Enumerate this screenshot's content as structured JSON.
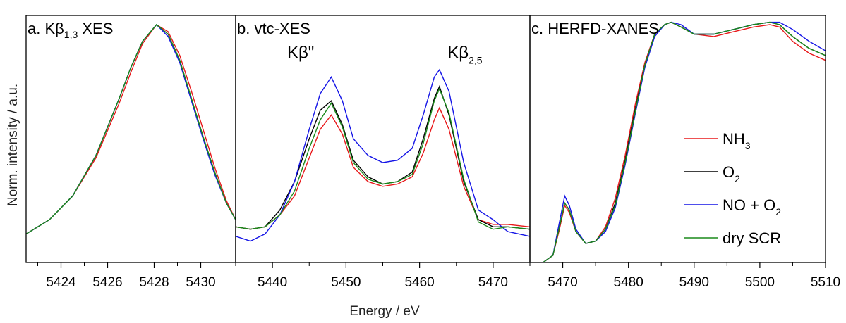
{
  "figure": {
    "ylabel": "Norm. intensity / a.u.",
    "xlabel": "Energy / eV"
  },
  "legend": [
    {
      "label_main": "NH",
      "label_sub": "3",
      "label_tail": "",
      "color": "#e8191b"
    },
    {
      "label_main": "O",
      "label_sub": "2",
      "label_tail": "",
      "color": "#000000"
    },
    {
      "label_main": "NO + O",
      "label_sub": "2",
      "label_tail": "",
      "color": "#1414e6"
    },
    {
      "label_main": "dry SCR",
      "label_sub": "",
      "label_tail": "",
      "color": "#1a8a1a"
    }
  ],
  "chart_data": [
    {
      "type": "line",
      "title_main": "a. Kβ",
      "title_sub": "1,3",
      "title_tail": " XES",
      "xlim": [
        5422.5,
        5431.5
      ],
      "xticks": [
        5424,
        5426,
        5428,
        5430
      ],
      "ylim": [
        0,
        1.1
      ],
      "series": [
        {
          "color": "#e8191b",
          "x": [
            5422.5,
            5423.5,
            5424.5,
            5425.5,
            5426.5,
            5427.0,
            5427.5,
            5428.1,
            5428.6,
            5429.1,
            5429.6,
            5430.1,
            5430.6,
            5431.1,
            5431.5
          ],
          "y": [
            0.12,
            0.18,
            0.28,
            0.44,
            0.67,
            0.8,
            0.92,
            1.0,
            0.97,
            0.87,
            0.72,
            0.56,
            0.4,
            0.26,
            0.18
          ]
        },
        {
          "color": "#000000",
          "x": [
            5422.5,
            5423.5,
            5424.5,
            5425.5,
            5426.5,
            5427.0,
            5427.5,
            5428.1,
            5428.6,
            5429.1,
            5429.6,
            5430.1,
            5430.6,
            5431.1,
            5431.5
          ],
          "y": [
            0.12,
            0.18,
            0.28,
            0.45,
            0.69,
            0.82,
            0.93,
            1.0,
            0.96,
            0.85,
            0.69,
            0.53,
            0.38,
            0.25,
            0.18
          ]
        },
        {
          "color": "#1414e6",
          "x": [
            5422.5,
            5423.5,
            5424.5,
            5425.5,
            5426.5,
            5427.0,
            5427.5,
            5428.1,
            5428.6,
            5429.1,
            5429.6,
            5430.1,
            5430.6,
            5431.1,
            5431.5
          ],
          "y": [
            0.12,
            0.18,
            0.28,
            0.45,
            0.69,
            0.82,
            0.93,
            1.0,
            0.95,
            0.84,
            0.68,
            0.52,
            0.37,
            0.25,
            0.18
          ]
        },
        {
          "color": "#1a8a1a",
          "x": [
            5422.5,
            5423.5,
            5424.5,
            5425.5,
            5426.5,
            5427.0,
            5427.5,
            5428.1,
            5428.6,
            5429.1,
            5429.6,
            5430.1,
            5430.6,
            5431.1,
            5431.5
          ],
          "y": [
            0.12,
            0.18,
            0.28,
            0.45,
            0.69,
            0.82,
            0.93,
            1.0,
            0.96,
            0.85,
            0.69,
            0.53,
            0.38,
            0.25,
            0.18
          ]
        }
      ]
    },
    {
      "type": "line",
      "title_main": "b. vtc-XES",
      "title_sub": "",
      "title_tail": "",
      "xlim": [
        5435,
        5475
      ],
      "xticks": [
        5440,
        5450,
        5460,
        5470
      ],
      "ylim": [
        0,
        1.1
      ],
      "annotations": [
        {
          "main": "Kβ\"",
          "sub": "",
          "x": 5442.0,
          "y": 0.86
        },
        {
          "main": "Kβ",
          "sub": "2,5",
          "x": 5463.8,
          "y": 0.86
        }
      ],
      "series": [
        {
          "color": "#e8191b",
          "x": [
            5435,
            5437,
            5439,
            5441,
            5443,
            5445,
            5446.5,
            5448,
            5449.5,
            5451,
            5453,
            5455,
            5457,
            5459,
            5460.5,
            5462,
            5462.7,
            5464,
            5466,
            5468,
            5470,
            5472,
            5475
          ],
          "y": [
            0.15,
            0.14,
            0.15,
            0.2,
            0.28,
            0.44,
            0.56,
            0.62,
            0.54,
            0.4,
            0.34,
            0.32,
            0.33,
            0.36,
            0.46,
            0.6,
            0.65,
            0.56,
            0.32,
            0.18,
            0.16,
            0.16,
            0.15
          ]
        },
        {
          "color": "#000000",
          "x": [
            5435,
            5437,
            5439,
            5441,
            5443,
            5445,
            5446.5,
            5448,
            5449.5,
            5451,
            5453,
            5455,
            5457,
            5459,
            5460.5,
            5462,
            5462.7,
            5464,
            5466,
            5468,
            5470,
            5472,
            5475
          ],
          "y": [
            0.15,
            0.14,
            0.15,
            0.22,
            0.34,
            0.52,
            0.64,
            0.68,
            0.58,
            0.43,
            0.36,
            0.33,
            0.34,
            0.38,
            0.52,
            0.69,
            0.74,
            0.62,
            0.34,
            0.18,
            0.15,
            0.15,
            0.14
          ]
        },
        {
          "color": "#1414e6",
          "x": [
            5435,
            5437,
            5439,
            5441,
            5443,
            5445,
            5446.5,
            5448,
            5449.5,
            5451,
            5453,
            5455,
            5457,
            5459,
            5460.5,
            5462,
            5462.7,
            5464,
            5466,
            5468,
            5470,
            5472,
            5475
          ],
          "y": [
            0.11,
            0.09,
            0.12,
            0.2,
            0.34,
            0.56,
            0.71,
            0.78,
            0.68,
            0.52,
            0.45,
            0.42,
            0.43,
            0.48,
            0.62,
            0.78,
            0.81,
            0.72,
            0.42,
            0.22,
            0.18,
            0.13,
            0.11
          ]
        },
        {
          "color": "#1a8a1a",
          "x": [
            5435,
            5437,
            5439,
            5441,
            5443,
            5445,
            5446.5,
            5448,
            5449.5,
            5451,
            5453,
            5455,
            5457,
            5459,
            5460.5,
            5462,
            5462.7,
            5464,
            5466,
            5468,
            5470,
            5472,
            5475
          ],
          "y": [
            0.15,
            0.14,
            0.15,
            0.2,
            0.3,
            0.48,
            0.6,
            0.67,
            0.57,
            0.42,
            0.35,
            0.33,
            0.34,
            0.37,
            0.5,
            0.68,
            0.73,
            0.63,
            0.35,
            0.17,
            0.14,
            0.15,
            0.14
          ]
        }
      ]
    },
    {
      "type": "line",
      "title_main": "c. HERFD-XANES",
      "title_sub": "",
      "title_tail": "",
      "xlim": [
        5465,
        5510
      ],
      "xticks": [
        5470,
        5480,
        5490,
        5500,
        5510
      ],
      "ylim": [
        0,
        1.1
      ],
      "series": [
        {
          "color": "#e8191b",
          "x": [
            5465,
            5467,
            5468.5,
            5469.5,
            5470.3,
            5471,
            5472,
            5473.5,
            5475,
            5476.5,
            5478,
            5479.5,
            5481,
            5482.5,
            5484,
            5485.5,
            5486.5,
            5488,
            5490,
            5493,
            5496,
            5499,
            5501.5,
            5503,
            5505,
            5507.5,
            5510
          ],
          "y": [
            0.0,
            0.0,
            0.03,
            0.14,
            0.24,
            0.21,
            0.13,
            0.08,
            0.09,
            0.15,
            0.27,
            0.45,
            0.66,
            0.84,
            0.96,
            1.0,
            1.01,
            0.99,
            0.96,
            0.95,
            0.97,
            0.99,
            1.0,
            0.99,
            0.93,
            0.88,
            0.85
          ]
        },
        {
          "color": "#000000",
          "x": [
            5465,
            5467,
            5468.5,
            5469.5,
            5470.3,
            5471,
            5472,
            5473.5,
            5475,
            5476.5,
            5478,
            5479.5,
            5481,
            5482.5,
            5484,
            5485.5,
            5486.5,
            5488,
            5490,
            5493,
            5496,
            5499,
            5501.5,
            5503,
            5505,
            5507.5,
            5510
          ],
          "y": [
            0.0,
            0.0,
            0.03,
            0.15,
            0.25,
            0.22,
            0.13,
            0.08,
            0.09,
            0.14,
            0.25,
            0.43,
            0.64,
            0.83,
            0.96,
            1.0,
            1.01,
            0.99,
            0.96,
            0.96,
            0.98,
            1.0,
            1.01,
            1.0,
            0.95,
            0.9,
            0.87
          ]
        },
        {
          "color": "#1414e6",
          "x": [
            5465,
            5467,
            5468.5,
            5469.5,
            5470.3,
            5471,
            5472,
            5473.5,
            5475,
            5476.5,
            5478,
            5479.5,
            5481,
            5482.5,
            5484,
            5485.5,
            5486.5,
            5488,
            5490,
            5493,
            5496,
            5499,
            5501.5,
            5503,
            5505,
            5507.5,
            5510
          ],
          "y": [
            0.0,
            0.0,
            0.03,
            0.17,
            0.28,
            0.24,
            0.14,
            0.08,
            0.09,
            0.13,
            0.23,
            0.41,
            0.62,
            0.82,
            0.95,
            1.0,
            1.01,
            1.0,
            0.96,
            0.96,
            0.98,
            1.0,
            1.01,
            1.01,
            0.98,
            0.93,
            0.89
          ]
        },
        {
          "color": "#1a8a1a",
          "x": [
            5465,
            5467,
            5468.5,
            5469.5,
            5470.3,
            5471,
            5472,
            5473.5,
            5475,
            5476.5,
            5478,
            5479.5,
            5481,
            5482.5,
            5484,
            5485.5,
            5486.5,
            5488,
            5490,
            5493,
            5496,
            5499,
            5501.5,
            5503,
            5505,
            5507.5,
            5510
          ],
          "y": [
            0.0,
            0.0,
            0.03,
            0.15,
            0.25,
            0.22,
            0.13,
            0.08,
            0.09,
            0.14,
            0.24,
            0.42,
            0.63,
            0.83,
            0.96,
            1.0,
            1.01,
            0.99,
            0.96,
            0.96,
            0.98,
            1.0,
            1.01,
            1.0,
            0.95,
            0.9,
            0.87
          ]
        }
      ]
    }
  ]
}
